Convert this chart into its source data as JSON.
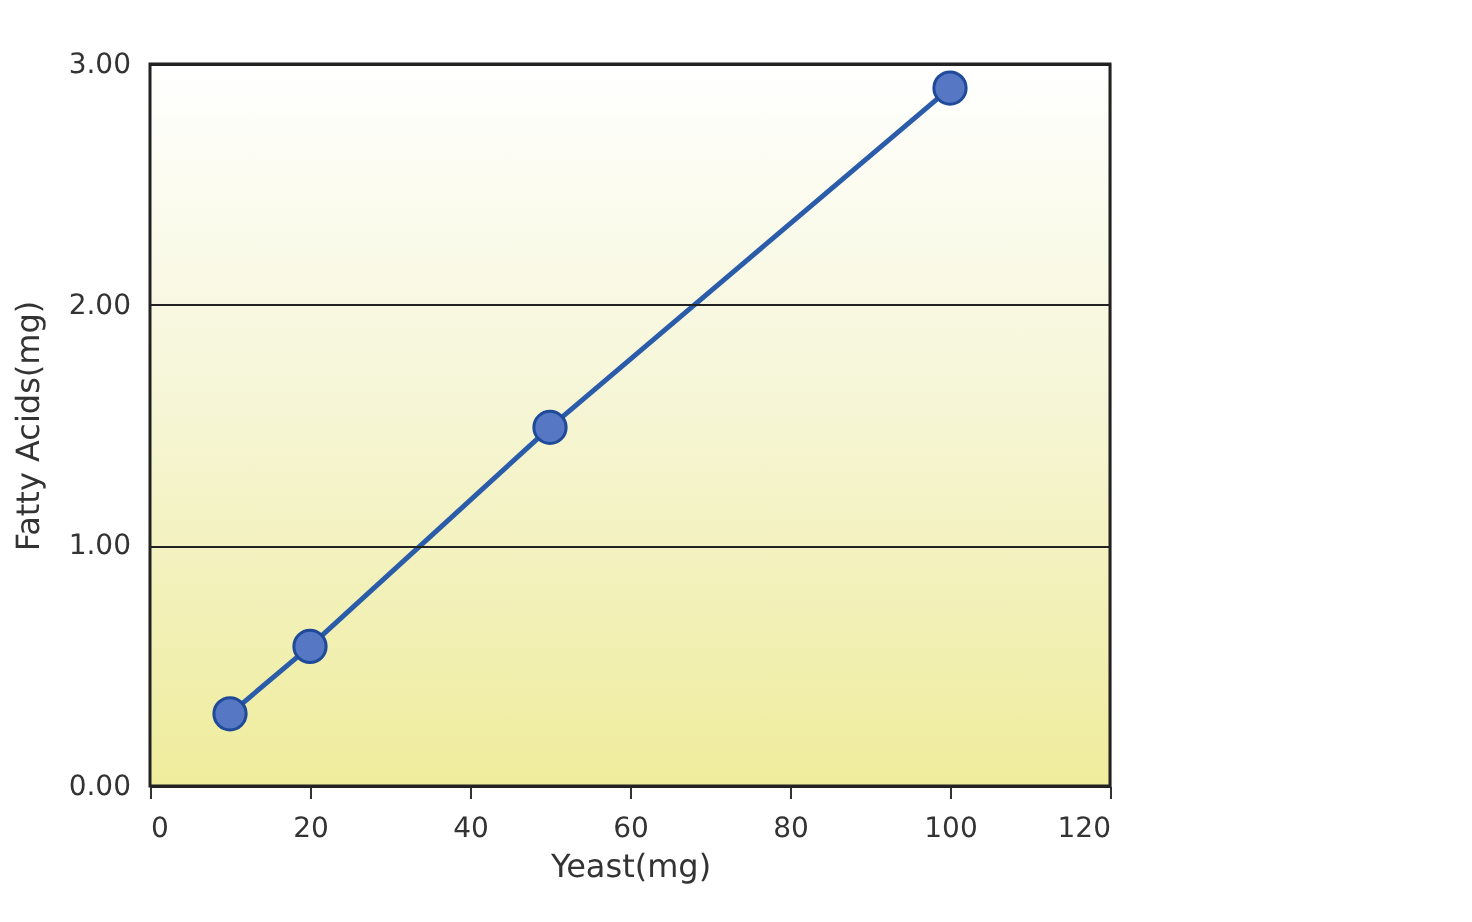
{
  "chart_data": {
    "type": "line",
    "xlabel": "Yeast(mg)",
    "ylabel": "Fatty Acids(mg)",
    "x": [
      10,
      20,
      50,
      100
    ],
    "series": [
      {
        "color": "#2a5caa",
        "values": [
          0.3,
          0.58,
          1.49,
          2.9
        ]
      }
    ],
    "xlim": [
      0,
      120
    ],
    "xticks": [
      0,
      20,
      40,
      60,
      80,
      100,
      120
    ],
    "ylim": [
      0,
      3
    ],
    "yticks": [
      {
        "value": 0,
        "label": "0.00"
      },
      {
        "value": 1,
        "label": "1.00"
      },
      {
        "value": 2,
        "label": "2.00"
      },
      {
        "value": 3,
        "label": "3.00"
      }
    ],
    "grid": "y",
    "marker": "circle",
    "line_style": "solid"
  }
}
